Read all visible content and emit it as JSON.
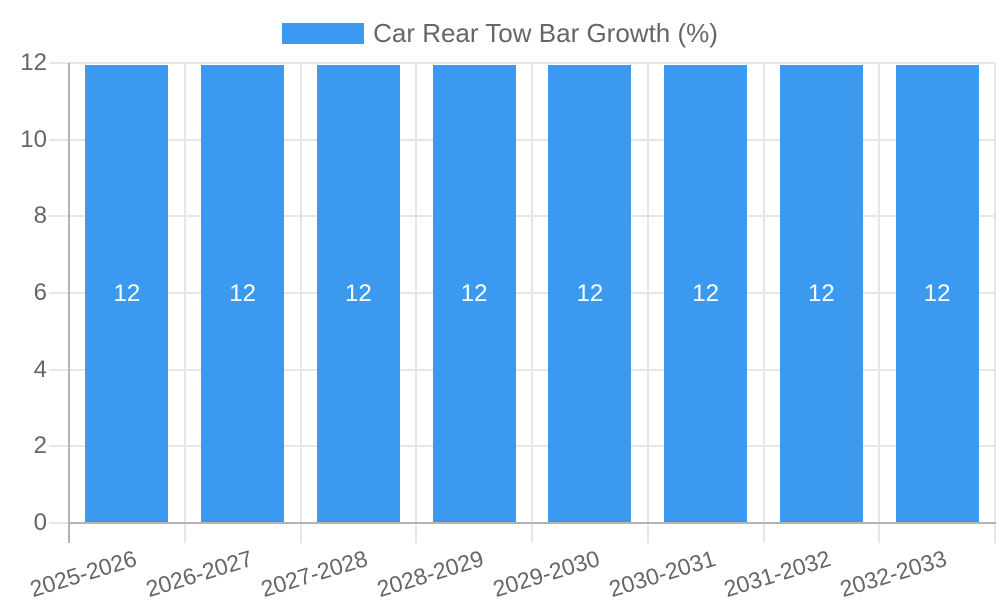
{
  "legend": {
    "label": "Car Rear Tow Bar Growth (%)"
  },
  "chart_data": {
    "type": "bar",
    "title": "Car Rear Tow Bar Growth (%)",
    "categories": [
      "2025-2026",
      "2026-2027",
      "2027-2028",
      "2028-2029",
      "2029-2030",
      "2030-2031",
      "2031-2032",
      "2032-2033"
    ],
    "series": [
      {
        "name": "Car Rear Tow Bar Growth (%)",
        "values": [
          12,
          12,
          12,
          12,
          12,
          12,
          12,
          12
        ]
      }
    ],
    "xlabel": "",
    "ylabel": "",
    "ylim": [
      0,
      12
    ],
    "yticks": [
      0,
      2,
      4,
      6,
      8,
      10,
      12
    ],
    "grid": true,
    "legend_position": "top",
    "data_labels_visible": true,
    "xtick_rotation_deg": -17
  },
  "colors": {
    "bar": "#3b99f0",
    "bar_label": "#ffffff",
    "legend_text": "#666666",
    "tick_text": "#666666",
    "grid": "#e6e6e6",
    "axis": "#b3b3b3",
    "background": "#ffffff"
  }
}
